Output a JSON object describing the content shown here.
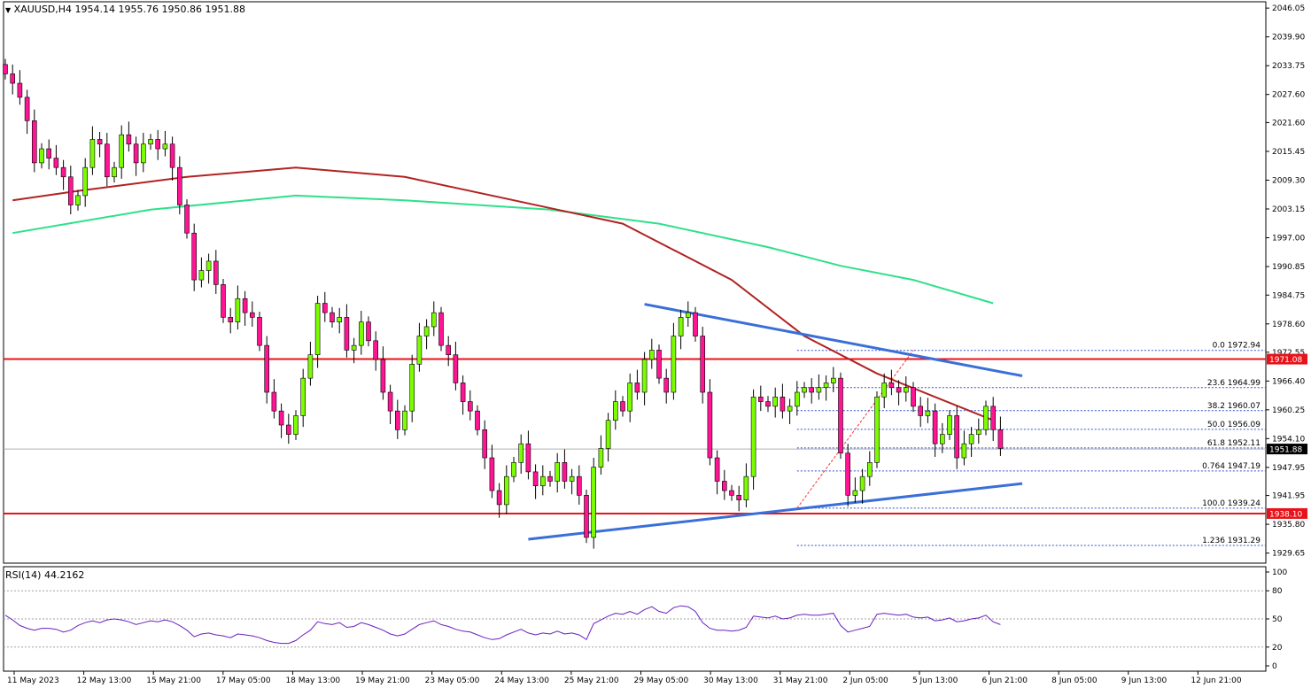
{
  "header": {
    "symbol_label": "XAUUSD,H4",
    "ohlc": "1954.14 1955.76 1950.86 1951.88",
    "rsi_label": "RSI(14) 44.2162"
  },
  "colors": {
    "bull": "#7cfc00",
    "bear": "#ff1493",
    "wick": "#000000",
    "ma_fast": "#b22222",
    "ma_slow": "#2ee08a",
    "trendline": "#3a6fd8",
    "level": "#e8121a",
    "rsi": "#6a1fbf",
    "fib": "#3050c8"
  },
  "chart_data": {
    "type": "candlestick",
    "symbol": "XAUUSD",
    "timeframe": "H4",
    "y_ticks": [
      "2046.05",
      "2039.90",
      "2033.75",
      "2027.60",
      "2021.60",
      "2015.45",
      "2009.30",
      "2003.15",
      "1997.00",
      "1990.85",
      "1984.75",
      "1978.60",
      "1972.55",
      "1966.40",
      "1960.25",
      "1954.10",
      "1947.95",
      "1941.95",
      "1935.80",
      "1929.65"
    ],
    "ylim": [
      1927.5,
      2047.4
    ],
    "x_labels": [
      "11 May 2023",
      "12 May 13:00",
      "15 May 21:00",
      "17 May 05:00",
      "18 May 13:00",
      "19 May 21:00",
      "23 May 05:00",
      "24 May 13:00",
      "25 May 21:00",
      "29 May 05:00",
      "30 May 13:00",
      "31 May 21:00",
      "2 Jun 05:00",
      "5 Jun 13:00",
      "6 Jun 21:00",
      "8 Jun 05:00",
      "9 Jun 13:00",
      "12 Jun 21:00"
    ],
    "closes": [
      2032,
      2030,
      2027,
      2022,
      2013,
      2016,
      2014,
      2012,
      2010,
      2004,
      2006,
      2012,
      2018,
      2017,
      2010,
      2012,
      2019,
      2017,
      2013,
      2017,
      2018,
      2016,
      2017,
      2012,
      2004,
      1998,
      1988,
      1990,
      1992,
      1987,
      1980,
      1979,
      1984,
      1981,
      1980,
      1974,
      1964,
      1960,
      1957,
      1955,
      1959,
      1967,
      1972,
      1983,
      1981,
      1979,
      1980,
      1973,
      1974,
      1979,
      1975,
      1971,
      1964,
      1960,
      1956,
      1960,
      1970,
      1976,
      1978,
      1981,
      1974,
      1972,
      1966,
      1962,
      1960,
      1956,
      1950,
      1943,
      1940,
      1946,
      1949,
      1953,
      1947,
      1944,
      1946,
      1945,
      1949,
      1945,
      1946,
      1942,
      1933,
      1948,
      1952,
      1958,
      1962,
      1960,
      1966,
      1964,
      1971,
      1973,
      1967,
      1964,
      1976,
      1980,
      1981,
      1976,
      1964,
      1950,
      1945,
      1943,
      1942,
      1941,
      1946,
      1963,
      1962,
      1961,
      1963,
      1960,
      1961,
      1964,
      1965,
      1964,
      1965,
      1966,
      1967,
      1951,
      1942,
      1943,
      1946,
      1949,
      1963,
      1966,
      1965,
      1964,
      1965,
      1961,
      1959,
      1960,
      1953,
      1955,
      1959,
      1950,
      1953,
      1955,
      1956,
      1961,
      1956,
      1952
    ],
    "ma_fast": [
      [
        1,
        2005
      ],
      [
        10,
        2007
      ],
      [
        25,
        2010
      ],
      [
        40,
        2012
      ],
      [
        55,
        2010
      ],
      [
        70,
        2005
      ],
      [
        85,
        2000
      ],
      [
        100,
        1988
      ],
      [
        110,
        1976
      ],
      [
        120,
        1968
      ],
      [
        128,
        1963
      ],
      [
        136,
        1958
      ]
    ],
    "ma_slow": [
      [
        1,
        1998
      ],
      [
        20,
        2003
      ],
      [
        40,
        2006
      ],
      [
        55,
        2005
      ],
      [
        75,
        2003
      ],
      [
        90,
        2000
      ],
      [
        105,
        1995
      ],
      [
        115,
        1991
      ],
      [
        125,
        1988
      ],
      [
        136,
        1983
      ]
    ],
    "resistance_trendline": [
      [
        88,
        1982.8
      ],
      [
        140,
        1967.5
      ]
    ],
    "support_trendline": [
      [
        72,
        1932.6
      ],
      [
        140,
        1944.5
      ]
    ],
    "horizontal_levels": [
      {
        "value": 1971.08,
        "label": "1971.08"
      },
      {
        "value": 1938.1,
        "label": "1938.10"
      }
    ],
    "current_price": {
      "value": 1951.88,
      "label": "1951.88"
    },
    "fibonacci": {
      "x_start": 109,
      "levels": [
        {
          "value": 1972.94,
          "label": "0.0 1972.94"
        },
        {
          "value": 1964.99,
          "label": "23.6 1964.99"
        },
        {
          "value": 1960.07,
          "label": "38.2 1960.07"
        },
        {
          "value": 1956.09,
          "label": "50.0 1956.09"
        },
        {
          "value": 1952.11,
          "label": "61.8 1952.11"
        },
        {
          "value": 1947.19,
          "label": "0.764 1947.19"
        },
        {
          "value": 1939.24,
          "label": "100.0 1939.24"
        },
        {
          "value": 1931.29,
          "label": "1.236 1931.29"
        }
      ]
    },
    "rsi": {
      "period": 14,
      "value": 44.2162,
      "y_ticks": [
        "100",
        "80",
        "50",
        "20",
        "0"
      ],
      "levels": [
        80,
        50,
        20
      ],
      "series": [
        54,
        49,
        43,
        40,
        38,
        40,
        40,
        39,
        36,
        38,
        43,
        46,
        48,
        46,
        49,
        50,
        49,
        47,
        44,
        46,
        48,
        47,
        49,
        47,
        43,
        38,
        31,
        34,
        35,
        33,
        32,
        30,
        34,
        33,
        32,
        30,
        27,
        25,
        24,
        24,
        27,
        33,
        38,
        47,
        45,
        44,
        46,
        41,
        42,
        46,
        44,
        41,
        38,
        34,
        32,
        34,
        39,
        44,
        46,
        48,
        44,
        42,
        39,
        37,
        36,
        33,
        30,
        28,
        29,
        33,
        36,
        39,
        35,
        33,
        35,
        34,
        37,
        34,
        35,
        33,
        28,
        45,
        49,
        53,
        56,
        55,
        58,
        55,
        60,
        63,
        58,
        56,
        62,
        64,
        63,
        58,
        46,
        40,
        38,
        38,
        37,
        38,
        41,
        53,
        52,
        51,
        53,
        50,
        51,
        54,
        55,
        54,
        54,
        55,
        56,
        43,
        36,
        38,
        40,
        42,
        55,
        56,
        55,
        54,
        55,
        52,
        51,
        52,
        48,
        49,
        51,
        47,
        48,
        50,
        51,
        54,
        47,
        44
      ]
    }
  }
}
